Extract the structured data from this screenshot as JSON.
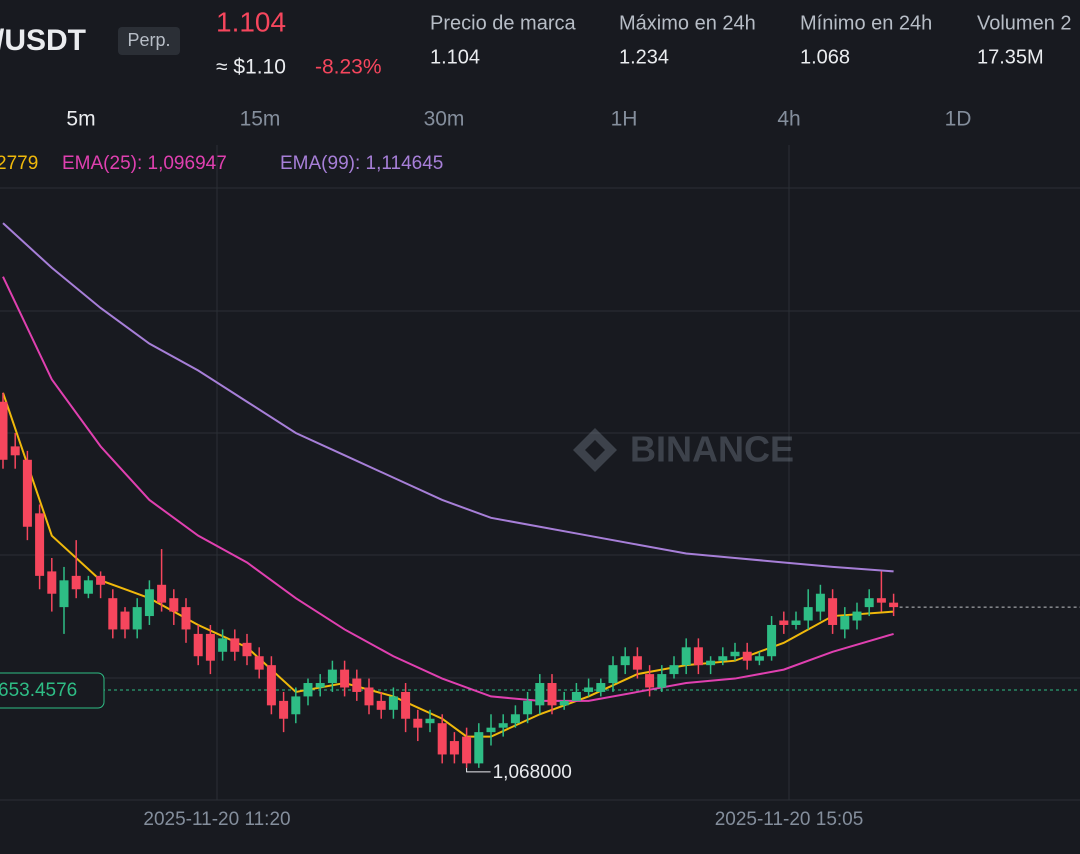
{
  "header": {
    "pair": "/USDT",
    "badge": "Perp.",
    "price": "1.104",
    "usd": "≈ $1.10",
    "change": "-8.23%",
    "stats": [
      {
        "label": "Precio de marca",
        "value": "1.104"
      },
      {
        "label": "Máximo en 24h",
        "value": "1.234"
      },
      {
        "label": "Mínimo en 24h",
        "value": "1.068"
      },
      {
        "label": "Volumen 2",
        "value": "17.35M"
      }
    ]
  },
  "tabs": [
    "5m",
    "15m",
    "30m",
    "1H",
    "4h",
    "1D"
  ],
  "watermark": "BINANCE",
  "time_labels": [
    "2025-11-20 11:20",
    "2025-11-20 15:05"
  ],
  "price_line_label": "653.4576",
  "low_label": "1,068000",
  "chart_data": {
    "type": "candlestick",
    "ylim": [
      1.0608,
      1.2075
    ],
    "up_color": "#2ebd85",
    "down_color": "#f6465d",
    "open": [
      1.15,
      1.14,
      1.137,
      1.125,
      1.112,
      1.104,
      1.111,
      1.107,
      1.111,
      1.106,
      1.103,
      1.099,
      1.102,
      1.109,
      1.106,
      1.104,
      1.098,
      1.098,
      1.094,
      1.097,
      1.096,
      1.093,
      1.091,
      1.083,
      1.08,
      1.084,
      1.086,
      1.087,
      1.09,
      1.088,
      1.086,
      1.083,
      1.081,
      1.085,
      1.079,
      1.078,
      1.078,
      1.074,
      1.075,
      1.069,
      1.076,
      1.077,
      1.078,
      1.08,
      1.082,
      1.087,
      1.082,
      1.083,
      1.085,
      1.085,
      1.087,
      1.091,
      1.093,
      1.089,
      1.086,
      1.089,
      1.091,
      1.095,
      1.091,
      1.092,
      1.093,
      1.094,
      1.092,
      1.093,
      1.101,
      1.1,
      1.101,
      1.103,
      1.106,
      1.099,
      1.101,
      1.104,
      1.106,
      1.105
    ],
    "high": [
      1.152,
      1.143,
      1.139,
      1.127,
      1.115,
      1.113,
      1.119,
      1.111,
      1.112,
      1.108,
      1.104,
      1.106,
      1.11,
      1.117,
      1.108,
      1.106,
      1.1,
      1.1,
      1.099,
      1.099,
      1.098,
      1.095,
      1.093,
      1.085,
      1.086,
      1.088,
      1.089,
      1.092,
      1.092,
      1.09,
      1.088,
      1.085,
      1.086,
      1.087,
      1.081,
      1.081,
      1.08,
      1.076,
      1.077,
      1.078,
      1.08,
      1.08,
      1.082,
      1.085,
      1.089,
      1.089,
      1.085,
      1.087,
      1.088,
      1.088,
      1.093,
      1.095,
      1.095,
      1.091,
      1.091,
      1.093,
      1.097,
      1.097,
      1.093,
      1.095,
      1.096,
      1.096,
      1.094,
      1.102,
      1.103,
      1.103,
      1.108,
      1.109,
      1.108,
      1.104,
      1.105,
      1.108,
      1.112,
      1.107
    ],
    "low": [
      1.135,
      1.135,
      1.119,
      1.108,
      1.103,
      1.098,
      1.106,
      1.106,
      1.106,
      1.097,
      1.097,
      1.097,
      1.1,
      1.103,
      1.1,
      1.096,
      1.091,
      1.089,
      1.092,
      1.092,
      1.091,
      1.088,
      1.08,
      1.076,
      1.078,
      1.082,
      1.084,
      1.085,
      1.084,
      1.083,
      1.08,
      1.079,
      1.079,
      1.076,
      1.074,
      1.076,
      1.069,
      1.069,
      1.068,
      1.068,
      1.073,
      1.075,
      1.077,
      1.078,
      1.08,
      1.08,
      1.081,
      1.083,
      1.084,
      1.084,
      1.085,
      1.089,
      1.088,
      1.084,
      1.085,
      1.088,
      1.089,
      1.089,
      1.089,
      1.091,
      1.092,
      1.09,
      1.091,
      1.092,
      1.098,
      1.099,
      1.099,
      1.101,
      1.098,
      1.097,
      1.099,
      1.102,
      1.103,
      1.102
    ],
    "close": [
      1.137,
      1.138,
      1.122,
      1.111,
      1.107,
      1.11,
      1.108,
      1.11,
      1.109,
      1.099,
      1.099,
      1.104,
      1.108,
      1.105,
      1.103,
      1.099,
      1.093,
      1.092,
      1.097,
      1.094,
      1.093,
      1.09,
      1.082,
      1.079,
      1.084,
      1.087,
      1.087,
      1.09,
      1.086,
      1.085,
      1.082,
      1.081,
      1.084,
      1.079,
      1.077,
      1.079,
      1.071,
      1.071,
      1.069,
      1.076,
      1.077,
      1.078,
      1.08,
      1.083,
      1.087,
      1.082,
      1.083,
      1.085,
      1.086,
      1.087,
      1.091,
      1.093,
      1.09,
      1.086,
      1.089,
      1.091,
      1.095,
      1.091,
      1.092,
      1.093,
      1.094,
      1.092,
      1.093,
      1.1,
      1.1,
      1.101,
      1.104,
      1.107,
      1.1,
      1.102,
      1.103,
      1.106,
      1.105,
      1.104
    ],
    "series": [
      {
        "name": "2779",
        "color": "#f0b90b",
        "x": [
          0,
          4,
          8,
          12,
          16,
          20,
          24,
          28,
          32,
          36,
          38,
          40,
          44,
          48,
          52,
          56,
          60,
          64,
          68,
          73
        ],
        "values": [
          1.152,
          1.12,
          1.11,
          1.106,
          1.1,
          1.095,
          1.085,
          1.087,
          1.084,
          1.079,
          1.075,
          1.075,
          1.08,
          1.084,
          1.089,
          1.091,
          1.092,
          1.096,
          1.102,
          1.103
        ]
      },
      {
        "name": "EMA(25): 1,096947",
        "color": "#e040b0",
        "x": [
          0,
          4,
          8,
          12,
          16,
          20,
          24,
          28,
          32,
          36,
          40,
          44,
          48,
          52,
          56,
          60,
          64,
          68,
          73
        ],
        "values": [
          1.178,
          1.155,
          1.14,
          1.128,
          1.12,
          1.114,
          1.106,
          1.099,
          1.093,
          1.088,
          1.084,
          1.083,
          1.083,
          1.085,
          1.087,
          1.088,
          1.09,
          1.094,
          1.098
        ]
      },
      {
        "name": "EMA(99): 1,114645",
        "color": "#a77fd8",
        "x": [
          0,
          4,
          8,
          12,
          16,
          20,
          24,
          28,
          32,
          36,
          40,
          44,
          48,
          52,
          56,
          60,
          64,
          68,
          73
        ],
        "values": [
          1.19,
          1.18,
          1.171,
          1.163,
          1.157,
          1.15,
          1.143,
          1.138,
          1.133,
          1.128,
          1.124,
          1.122,
          1.12,
          1.118,
          1.116,
          1.115,
          1.114,
          1.113,
          1.112
        ]
      }
    ]
  }
}
